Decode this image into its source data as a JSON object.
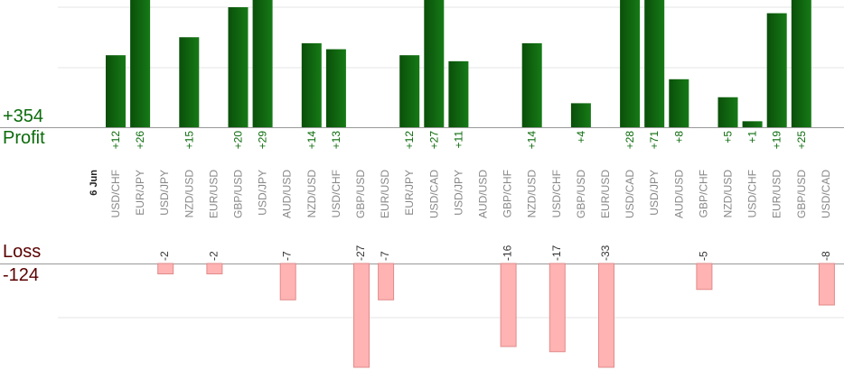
{
  "summary": {
    "profit_total": "+354",
    "profit_label": "Profit",
    "loss_label": "Loss",
    "loss_total": "-124"
  },
  "colors": {
    "profit_bar_dark": "#0a4f0a",
    "profit_bar_light": "#167a16",
    "profit_text": "#0b6b0b",
    "loss_bar_fill": "#ffb3b3",
    "loss_bar_stroke": "#e28a8a",
    "loss_text": "#333333",
    "category_text": "#888888",
    "grid": "#e6e6e6",
    "baseline": "#999999"
  },
  "chart_data": {
    "type": "bar",
    "date_label": "6 Jun",
    "categories": [
      "USD/CHF",
      "EUR/JPY",
      "USD/JPY",
      "NZD/USD",
      "EUR/USD",
      "GBP/USD",
      "USD/JPY",
      "AUD/USD",
      "NZD/USD",
      "USD/CHF",
      "GBP/USD",
      "EUR/USD",
      "EUR/JPY",
      "USD/CAD",
      "USD/JPY",
      "AUD/USD",
      "GBP/CHF",
      "NZD/USD",
      "USD/CHF",
      "GBP/USD",
      "EUR/USD",
      "USD/CAD",
      "USD/JPY",
      "AUD/USD",
      "GBP/CHF",
      "NZD/USD",
      "USD/CHF",
      "EUR/USD",
      "GBP/USD",
      "USD/CAD"
    ],
    "series": [
      {
        "name": "Profit",
        "values": [
          12,
          26,
          null,
          15,
          null,
          20,
          29,
          null,
          14,
          13,
          null,
          null,
          12,
          27,
          11,
          null,
          null,
          14,
          null,
          4,
          null,
          28,
          71,
          8,
          null,
          5,
          1,
          19,
          25,
          null
        ],
        "labels": [
          "+12",
          "+26",
          "",
          "+15",
          "",
          "+20",
          "+29",
          "",
          "+14",
          "+13",
          "",
          "",
          "+12",
          "+27",
          "+11",
          "",
          "",
          "+14",
          "",
          "+4",
          "",
          "+28",
          "+71",
          "+8",
          "",
          "+5",
          "+1",
          "+19",
          "+25",
          ""
        ]
      },
      {
        "name": "Loss",
        "values": [
          null,
          null,
          -2,
          null,
          -2,
          null,
          null,
          -7,
          null,
          null,
          -27,
          -7,
          null,
          null,
          null,
          null,
          -16,
          null,
          -17,
          null,
          -33,
          null,
          null,
          null,
          -5,
          null,
          null,
          null,
          null,
          -8
        ],
        "labels": [
          "",
          "",
          "-2",
          "",
          "-2",
          "",
          "",
          "-7",
          "",
          "",
          "-27",
          "-7",
          "",
          "",
          "",
          "",
          "-16",
          "",
          "-17",
          "",
          "-33",
          "",
          "",
          "",
          "-5",
          "",
          "",
          "",
          "",
          "-8"
        ]
      }
    ],
    "profit_axis_max": 20,
    "loss_axis_min": -20,
    "grid": true
  }
}
